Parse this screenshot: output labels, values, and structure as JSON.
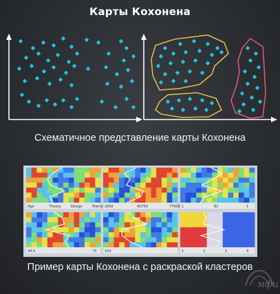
{
  "title": "Карты Кохонена",
  "caption_schematic": "Схематичное представление карты Кохонена",
  "caption_example": "Пример карты Кохонена с раскраской кластеров",
  "colors": {
    "dot": "#1fc3e6",
    "cluster_yellow": "#e0b84a",
    "cluster_pink": "#e0567a",
    "axis": "#ffffff"
  },
  "example_panels": [
    {
      "scale_labels": [
        "Age",
        "Theory",
        "Design",
        "Matrix"
      ]
    },
    {
      "scale_labels": [
        "2000",
        "40750",
        "77000"
      ]
    },
    {
      "scale_labels": [
        "1",
        "82",
        "1"
      ]
    },
    {
      "scale_labels": [
        "44.5",
        "73"
      ]
    },
    {
      "scale_labels": [
        "100",
        "",
        ""
      ]
    },
    {
      "scale_labels": [
        "1",
        "2",
        "3",
        "4"
      ]
    }
  ],
  "logo_text": "мфи"
}
